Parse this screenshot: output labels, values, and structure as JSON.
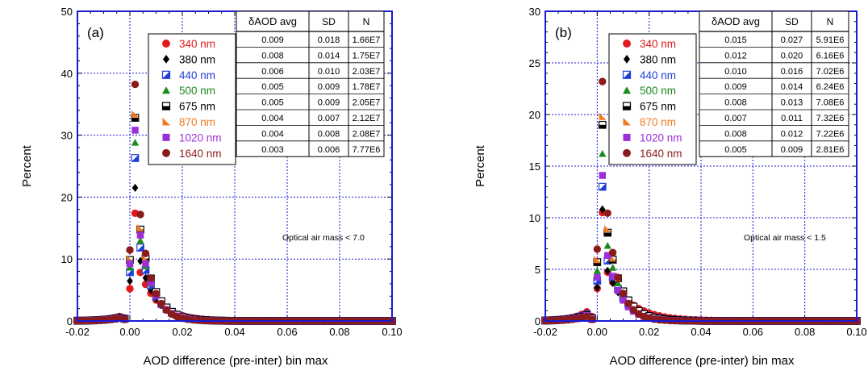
{
  "chart_data": [
    {
      "type": "scatter",
      "panel_label": "(a)",
      "xlabel": "AOD difference (pre-inter) bin max",
      "ylabel": "Percent",
      "xlim": [
        -0.02,
        0.1
      ],
      "ylim": [
        0,
        50
      ],
      "xticks": [
        -0.02,
        0.0,
        0.02,
        0.04,
        0.06,
        0.08,
        0.1
      ],
      "xtick_labels": [
        "-0.02",
        "0.00",
        "0.02",
        "0.04",
        "0.06",
        "0.08",
        "0.10"
      ],
      "yticks": [
        0,
        10,
        20,
        30,
        40,
        50
      ],
      "ytick_labels": [
        "0",
        "10",
        "20",
        "30",
        "40",
        "50"
      ],
      "grid": true,
      "legend_position": "top-center",
      "annotation": "Optical air mass < 7.0",
      "stats_table": {
        "headers": [
          "δAOD avg",
          "SD",
          "N"
        ],
        "rows": [
          [
            "0.009",
            "0.018",
            "1.66E7"
          ],
          [
            "0.008",
            "0.014",
            "1.75E7"
          ],
          [
            "0.006",
            "0.010",
            "2.03E7"
          ],
          [
            "0.005",
            "0.009",
            "1.78E7"
          ],
          [
            "0.005",
            "0.009",
            "2.05E7"
          ],
          [
            "0.004",
            "0.007",
            "2.12E7"
          ],
          [
            "0.004",
            "0.008",
            "2.08E7"
          ],
          [
            "0.003",
            "0.006",
            "7.77E6"
          ]
        ]
      },
      "peaks": [
        17.4,
        21.5,
        26.3,
        28.8,
        32.8,
        33.4,
        30.8,
        38.2
      ],
      "tail_scale": [
        1.3,
        1.1,
        1.0,
        0.95,
        0.95,
        0.9,
        0.9,
        0.8
      ]
    },
    {
      "type": "scatter",
      "panel_label": "(b)",
      "xlabel": "AOD difference (pre-inter) bin max",
      "ylabel": "Percent",
      "xlim": [
        -0.02,
        0.1
      ],
      "ylim": [
        0,
        30
      ],
      "xticks": [
        -0.02,
        0.0,
        0.02,
        0.04,
        0.06,
        0.08,
        0.1
      ],
      "xtick_labels": [
        "-0.02",
        "0.00",
        "0.02",
        "0.04",
        "0.06",
        "0.08",
        "0.10"
      ],
      "yticks": [
        0,
        5,
        10,
        15,
        20,
        25,
        30
      ],
      "ytick_labels": [
        "0",
        "5",
        "10",
        "15",
        "20",
        "25",
        "30"
      ],
      "grid": true,
      "legend_position": "top-center",
      "annotation": "Optical air mass < 1.5",
      "stats_table": {
        "headers": [
          "δAOD avg",
          "SD",
          "N"
        ],
        "rows": [
          [
            "0.015",
            "0.027",
            "5.91E6"
          ],
          [
            "0.012",
            "0.020",
            "6.16E6"
          ],
          [
            "0.010",
            "0.016",
            "7.02E6"
          ],
          [
            "0.009",
            "0.014",
            "6.24E6"
          ],
          [
            "0.008",
            "0.013",
            "7.08E6"
          ],
          [
            "0.007",
            "0.011",
            "7.32E6"
          ],
          [
            "0.008",
            "0.012",
            "7.22E6"
          ],
          [
            "0.005",
            "0.009",
            "2.81E6"
          ]
        ]
      },
      "peaks": [
        10.5,
        10.8,
        13.0,
        16.2,
        19.0,
        19.8,
        14.1,
        23.2
      ],
      "tail_scale": [
        1.6,
        1.3,
        1.15,
        1.05,
        1.0,
        0.95,
        0.95,
        0.8
      ]
    }
  ],
  "series": [
    {
      "name": "340 nm",
      "color": "#e31a1c",
      "marker": "circle"
    },
    {
      "name": "380 nm",
      "color": "#000000",
      "marker": "diamond"
    },
    {
      "name": "440 nm",
      "color": "#1f3fd8",
      "marker": "half-square"
    },
    {
      "name": "500 nm",
      "color": "#1a8a1a",
      "marker": "triangle"
    },
    {
      "name": "675 nm",
      "color": "#000000",
      "marker": "half-square-h"
    },
    {
      "name": "870 nm",
      "color": "#f07a20",
      "marker": "half-triangle"
    },
    {
      "name": "1020 nm",
      "color": "#9b30d9",
      "marker": "square"
    },
    {
      "name": "1640 nm",
      "color": "#8b1a1a",
      "marker": "circle"
    }
  ],
  "colors": {
    "grid": "#1a1ad6",
    "frame": "#1a1ad6"
  }
}
